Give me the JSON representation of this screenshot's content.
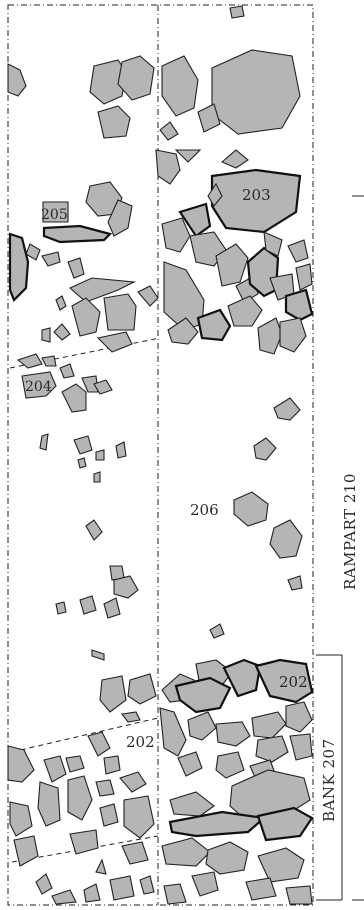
{
  "contexts": {
    "c202_upper": "202",
    "c202_lower": "202",
    "c203": "203",
    "c204": "204",
    "c205": "205",
    "c206": "206"
  },
  "features": {
    "rampart": "RAMPART 210",
    "bank": "BANK 207"
  }
}
